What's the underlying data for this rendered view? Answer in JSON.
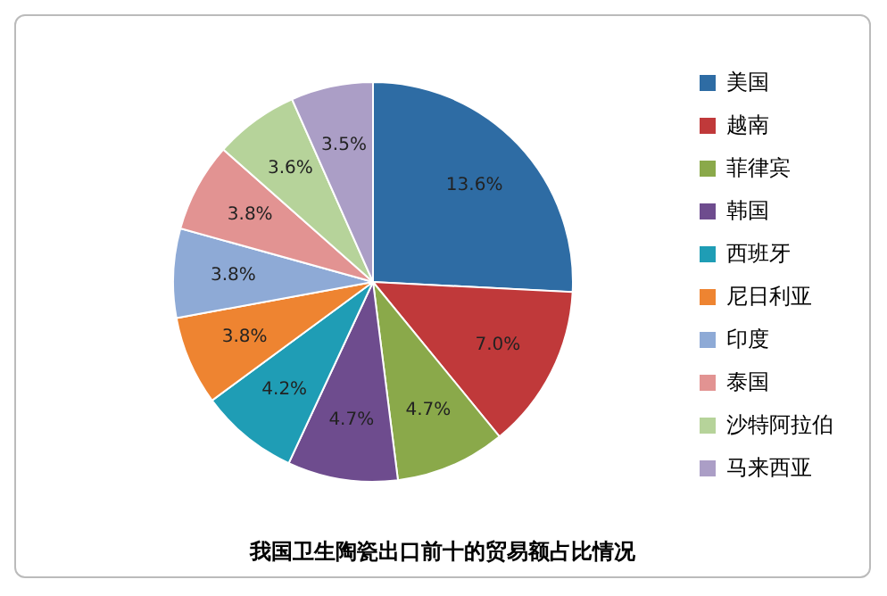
{
  "chart_data": {
    "type": "pie",
    "title": "我国卫生陶瓷出口前十的贸易额占比情况",
    "categories": [
      "美国",
      "越南",
      "菲律宾",
      "韩国",
      "西班牙",
      "尼日利亚",
      "印度",
      "泰国",
      "沙特阿拉伯",
      "马来西亚"
    ],
    "values": [
      13.6,
      7.0,
      4.7,
      4.7,
      4.2,
      3.8,
      3.8,
      3.8,
      3.6,
      3.5
    ],
    "value_labels": [
      "13.6%",
      "7.0%",
      "4.7%",
      "4.7%",
      "4.2%",
      "3.8%",
      "3.8%",
      "3.8%",
      "3.6%",
      "3.5%"
    ],
    "colors": [
      "#2e6ca4",
      "#c0393a",
      "#8aa94a",
      "#6e4c8e",
      "#1f9db5",
      "#ee8431",
      "#8eaad6",
      "#e29392",
      "#b6d39a",
      "#ab9ec6"
    ],
    "legend": "right"
  }
}
